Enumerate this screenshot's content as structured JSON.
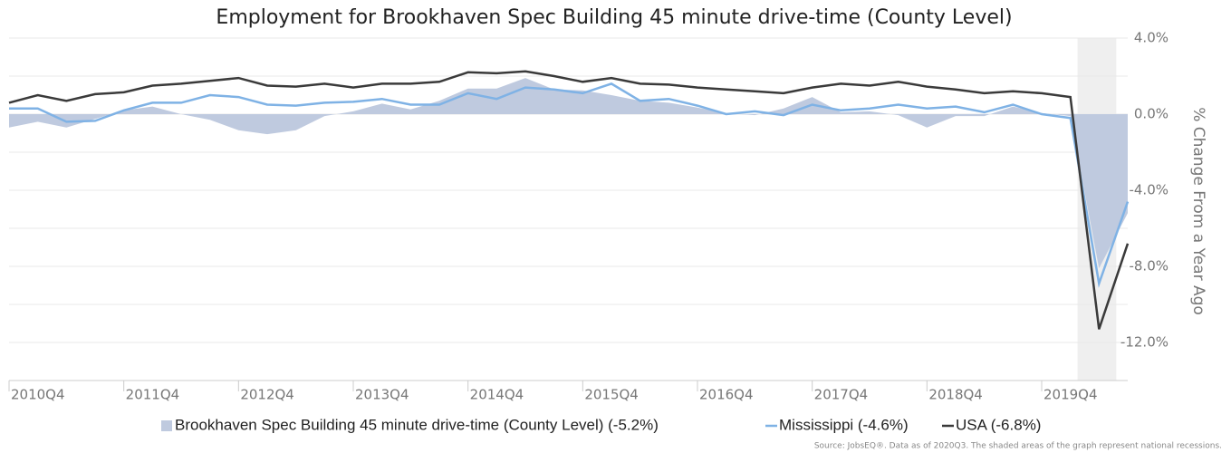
{
  "chart_data": {
    "type": "line",
    "title": "Employment for Brookhaven Spec Building 45 minute drive-time (County Level)",
    "y_label": "% Change From a Year Ago",
    "source": "Source: JobsEQ®. Data as of 2020Q3. The shaded areas of the graph represent national recessions.",
    "categories": [
      "2010Q4",
      null,
      null,
      null,
      "2011Q4",
      null,
      null,
      null,
      "2012Q4",
      null,
      null,
      null,
      "2013Q4",
      null,
      null,
      null,
      "2014Q4",
      null,
      null,
      null,
      "2015Q4",
      null,
      null,
      null,
      "2016Q4",
      null,
      null,
      null,
      "2017Q4",
      null,
      null,
      null,
      "2018Q4",
      null,
      null,
      null,
      "2019Q4",
      null,
      null,
      null
    ],
    "recession_index_range": [
      37,
      38
    ],
    "ylim": [
      -14,
      4
    ],
    "yticks": [
      {
        "value": 4,
        "label": "4.0%"
      },
      {
        "value": 0,
        "label": "0.0%"
      },
      {
        "value": -4,
        "label": "-4.0%"
      },
      {
        "value": -8,
        "label": "-8.0%"
      },
      {
        "value": -12,
        "label": "-12.0%"
      }
    ],
    "minor_yticks": [
      2,
      -2,
      -6,
      -10,
      -14
    ],
    "grid": true,
    "legend": "bottom",
    "series": [
      {
        "name": "Brookhaven Spec Building 45 minute drive-time (County Level) (-5.2%)",
        "style": "area",
        "color": "#bfcadf",
        "values": [
          -0.7,
          -0.4,
          -0.7,
          -0.25,
          0.2,
          0.4,
          0,
          -0.3,
          -0.85,
          -1.05,
          -0.85,
          -0.1,
          0.15,
          0.55,
          0.25,
          0.7,
          1.35,
          1.35,
          1.9,
          1.3,
          1.25,
          1.0,
          0.7,
          0.6,
          0.35,
          0.05,
          -0.05,
          0.3,
          0.9,
          0.1,
          0.15,
          -0.05,
          -0.7,
          -0.1,
          -0.1,
          0.4,
          0.05,
          -0.1,
          -8.1,
          -5.2
        ]
      },
      {
        "name": "Mississippi (-4.6%)",
        "style": "line",
        "color": "#7fb2e5",
        "values": [
          0.3,
          0.3,
          -0.4,
          -0.35,
          0.2,
          0.6,
          0.6,
          1.0,
          0.9,
          0.5,
          0.45,
          0.6,
          0.65,
          0.8,
          0.5,
          0.5,
          1.1,
          0.8,
          1.4,
          1.3,
          1.1,
          1.6,
          0.7,
          0.8,
          0.45,
          0,
          0.15,
          -0.05,
          0.5,
          0.2,
          0.3,
          0.5,
          0.3,
          0.4,
          0.1,
          0.5,
          0,
          -0.2,
          -8.9,
          -4.6
        ]
      },
      {
        "name": "USA (-6.8%)",
        "style": "line",
        "color": "#3a3a3a",
        "values": [
          0.6,
          1.0,
          0.7,
          1.05,
          1.15,
          1.5,
          1.6,
          1.75,
          1.9,
          1.5,
          1.45,
          1.6,
          1.4,
          1.6,
          1.6,
          1.7,
          2.2,
          2.15,
          2.25,
          2.0,
          1.7,
          1.9,
          1.6,
          1.55,
          1.4,
          1.3,
          1.2,
          1.1,
          1.4,
          1.6,
          1.5,
          1.7,
          1.45,
          1.3,
          1.1,
          1.2,
          1.1,
          0.9,
          -11.3,
          -6.8
        ]
      }
    ]
  }
}
